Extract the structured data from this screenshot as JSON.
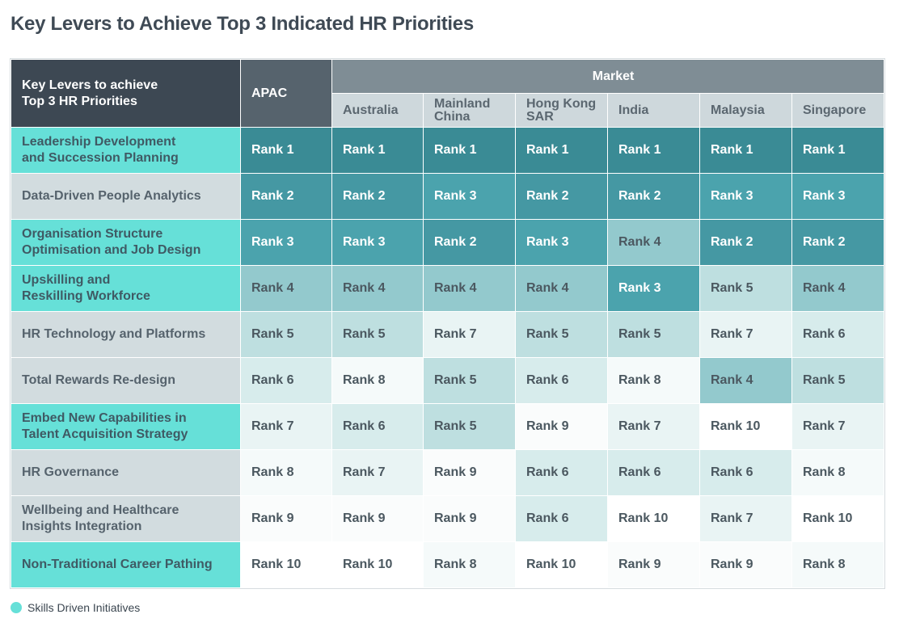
{
  "title": "Key Levers to Achieve Top 3 Indicated HR Priorities",
  "legend": {
    "label": "Skills Driven Initiatives",
    "color": "#66e0d8"
  },
  "chart_data": {
    "type": "table",
    "corner_header": [
      "Key Levers to achieve",
      "Top 3 HR Priorities"
    ],
    "group_header": "Market",
    "columns": [
      "APAC",
      "Australia",
      "Mainland China",
      "Hong Kong SAR",
      "India",
      "Malaysia",
      "Singapore"
    ],
    "column_lines": [
      [
        "APAC"
      ],
      [
        "Australia"
      ],
      [
        "Mainland",
        "China"
      ],
      [
        "Hong Kong",
        "SAR"
      ],
      [
        "India"
      ],
      [
        "Malaysia"
      ],
      [
        "Singapore"
      ]
    ],
    "rows": [
      {
        "lever": "Leadership Development and Succession Planning",
        "lines": [
          "Leadership Development",
          "and Succession Planning"
        ],
        "skills_driven": true,
        "ranks": [
          1,
          1,
          1,
          1,
          1,
          1,
          1
        ]
      },
      {
        "lever": "Data-Driven People Analytics",
        "lines": [
          "Data-Driven People Analytics"
        ],
        "skills_driven": false,
        "ranks": [
          2,
          2,
          3,
          2,
          2,
          3,
          3
        ]
      },
      {
        "lever": "Organisation Structure Optimisation and Job Design",
        "lines": [
          "Organisation Structure",
          "Optimisation and Job Design"
        ],
        "skills_driven": true,
        "ranks": [
          3,
          3,
          2,
          3,
          4,
          2,
          2
        ]
      },
      {
        "lever": "Upskilling and Reskilling Workforce",
        "lines": [
          "Upskilling and",
          "Reskilling Workforce"
        ],
        "skills_driven": true,
        "ranks": [
          4,
          4,
          4,
          4,
          3,
          5,
          4
        ]
      },
      {
        "lever": "HR Technology and Platforms",
        "lines": [
          "HR Technology and Platforms"
        ],
        "skills_driven": false,
        "ranks": [
          5,
          5,
          7,
          5,
          5,
          7,
          6
        ]
      },
      {
        "lever": "Total Rewards Re-design",
        "lines": [
          "Total Rewards Re-design"
        ],
        "skills_driven": false,
        "ranks": [
          6,
          8,
          5,
          6,
          8,
          4,
          5
        ]
      },
      {
        "lever": "Embed New Capabilities in Talent Acquisition Strategy",
        "lines": [
          "Embed New Capabilities in",
          "Talent Acquisition Strategy"
        ],
        "skills_driven": true,
        "ranks": [
          7,
          6,
          5,
          9,
          7,
          10,
          7
        ]
      },
      {
        "lever": "HR Governance",
        "lines": [
          "HR Governance"
        ],
        "skills_driven": false,
        "ranks": [
          8,
          7,
          9,
          6,
          6,
          6,
          8
        ]
      },
      {
        "lever": "Wellbeing and Healthcare Insights Integration",
        "lines": [
          "Wellbeing and Healthcare",
          "Insights Integration"
        ],
        "skills_driven": false,
        "ranks": [
          9,
          9,
          9,
          6,
          10,
          7,
          10
        ]
      },
      {
        "lever": "Non-Traditional Career Pathing",
        "lines": [
          "Non-Traditional Career Pathing"
        ],
        "skills_driven": true,
        "ranks": [
          10,
          10,
          8,
          10,
          9,
          9,
          8
        ]
      }
    ],
    "cell_prefix": "Rank",
    "rank_colors": {
      "1": "#3a8b95",
      "2": "#4598a3",
      "3": "#4ba3ad",
      "4": "#93c9cd",
      "5": "#bedfe0",
      "6": "#d7ecec",
      "7": "#e9f4f4",
      "8": "#f5fafa",
      "9": "#fafcfc",
      "10": "#ffffff"
    },
    "rank_text_colors": {
      "1": "#ffffff",
      "2": "#ffffff",
      "3": "#ffffff",
      "4": "#4b5860",
      "5": "#4b5860",
      "6": "#4b5860",
      "7": "#4b5860",
      "8": "#4b5860",
      "9": "#4b5860",
      "10": "#4b5860"
    }
  }
}
